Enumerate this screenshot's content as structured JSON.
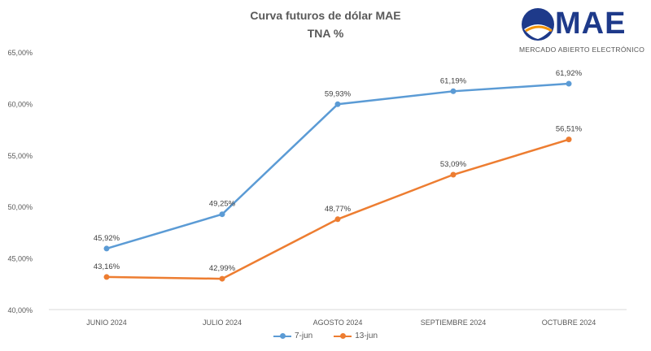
{
  "chart_data": {
    "type": "line",
    "title": "Curva futuros de dólar MAE",
    "subtitle": "TNA %",
    "categories": [
      "JUNIO 2024",
      "JULIO 2024",
      "AGOSTO 2024",
      "SEPTIEMBRE 2024",
      "OCTUBRE 2024"
    ],
    "series": [
      {
        "name": "7-jun",
        "values": [
          45.92,
          49.25,
          59.93,
          61.19,
          61.92
        ],
        "labels": [
          "45,92%",
          "49,25%",
          "59,93%",
          "61,19%",
          "61,92%"
        ],
        "color": "#5b9bd5"
      },
      {
        "name": "13-jun",
        "values": [
          43.16,
          42.99,
          48.77,
          53.09,
          56.51
        ],
        "labels": [
          "43,16%",
          "42,99%",
          "48,77%",
          "53,09%",
          "56,51%"
        ],
        "color": "#ed7d31"
      }
    ],
    "ylim": [
      40,
      65
    ],
    "yticks": [
      40,
      45,
      50,
      55,
      60,
      65
    ],
    "ytick_labels": [
      "40,00%",
      "45,00%",
      "50,00%",
      "55,00%",
      "60,00%",
      "65,00%"
    ],
    "grid": false,
    "legend": "bottom"
  },
  "logo": {
    "word": "MAE",
    "tagline": "MERCADO ABIERTO ELECTRÓNICO",
    "colors": {
      "dark": "#1e3a8a",
      "accent": "#f39200"
    }
  }
}
